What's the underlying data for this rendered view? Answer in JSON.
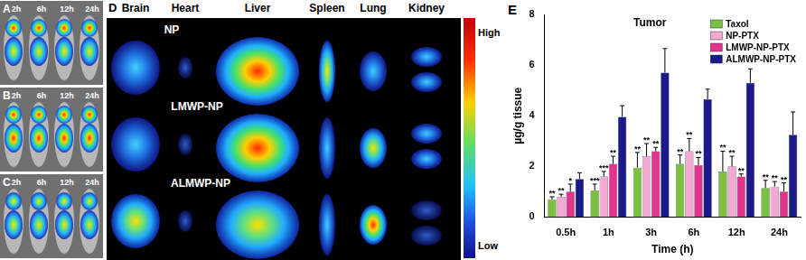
{
  "chart_data": {
    "type": "bar",
    "title": "Tumor",
    "x_label": "Time (h)",
    "y_label": "µg/g tissue",
    "categories": [
      "0.5h",
      "1h",
      "3h",
      "6h",
      "12h",
      "24h"
    ],
    "series": [
      {
        "name": "Taxol",
        "color": "#7cc043",
        "values": [
          0.7,
          1.05,
          1.95,
          2.1,
          1.8,
          1.15
        ],
        "errors": [
          0.1,
          0.25,
          0.6,
          0.35,
          0.8,
          0.3
        ],
        "significance": [
          "**",
          "***",
          "**",
          "**",
          "**",
          "**"
        ]
      },
      {
        "name": "NP-PTX",
        "color": "#f2a9d2",
        "values": [
          0.8,
          1.6,
          2.4,
          2.6,
          2.0,
          1.2
        ],
        "errors": [
          0.1,
          0.2,
          0.5,
          0.5,
          0.4,
          0.2
        ],
        "significance": [
          "**",
          "***",
          "**",
          "**",
          "**",
          "**"
        ]
      },
      {
        "name": "LMWP-NP-PTX",
        "color": "#e0348f",
        "values": [
          1.0,
          2.1,
          2.6,
          2.05,
          1.6,
          1.0
        ],
        "errors": [
          0.3,
          0.3,
          0.15,
          0.3,
          0.1,
          0.35
        ],
        "significance": [
          "*",
          "**",
          "**",
          "**",
          "**",
          "**"
        ]
      },
      {
        "name": "ALMWP-NP-PTX",
        "color": "#1a1a8c",
        "values": [
          1.5,
          3.95,
          5.7,
          4.65,
          5.3,
          3.25
        ],
        "errors": [
          0.25,
          0.45,
          0.95,
          0.4,
          0.55,
          0.9
        ]
      }
    ],
    "ylim": [
      0,
      8
    ],
    "yticks": [
      0,
      2,
      4,
      6,
      8
    ],
    "grid": false,
    "legend": "upper right"
  },
  "panel_label": "E",
  "imaging": {
    "whole_body": {
      "panels": [
        "A",
        "B",
        "C"
      ],
      "time_points": [
        "2h",
        "6h",
        "12h",
        "24h"
      ]
    },
    "ex_vivo": {
      "panel": "D",
      "organs": [
        "Brain",
        "Heart",
        "Liver",
        "Spleen",
        "Lung",
        "Kidney"
      ],
      "groups": [
        "NP",
        "LMWP-NP",
        "ALMWP-NP"
      ],
      "scale_high": "High",
      "scale_low": "Low"
    }
  }
}
